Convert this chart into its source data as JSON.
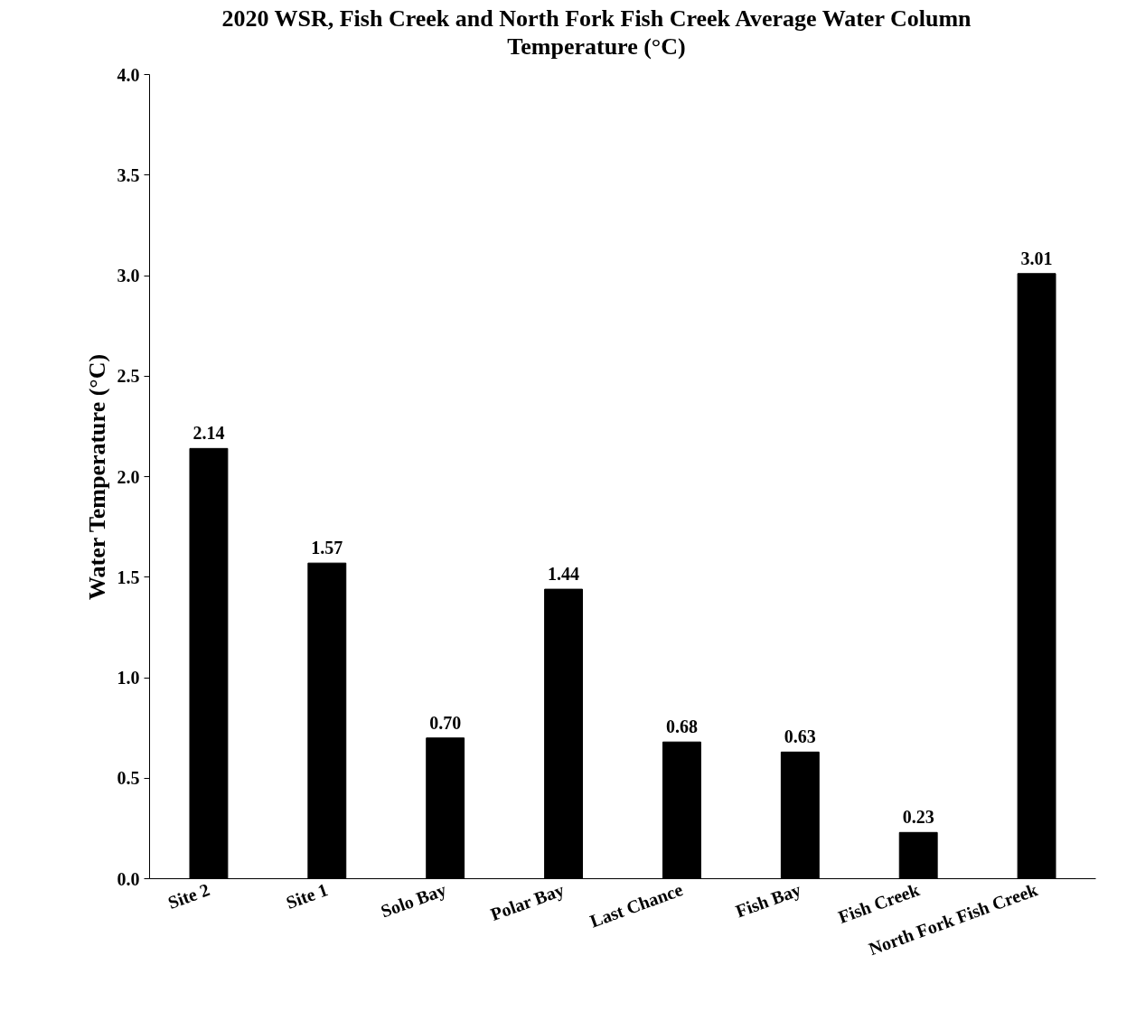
{
  "chart_data": {
    "type": "bar",
    "title": "2020 WSR, Fish Creek and North Fork Fish Creek Average Water Column Temperature (°C)",
    "ylabel": "Water Temperature (°C)",
    "categories": [
      "Site 2",
      "Site 1",
      "Solo Bay",
      "Polar Bay",
      "Last Chance",
      "Fish Bay",
      "Fish Creek",
      "North Fork Fish Creek"
    ],
    "values": [
      2.14,
      1.57,
      0.7,
      1.44,
      0.68,
      0.63,
      0.23,
      3.01
    ],
    "value_labels": [
      "2.14",
      "1.57",
      "0.70",
      "1.44",
      "0.68",
      "0.63",
      "0.23",
      "3.01"
    ],
    "color": "#000000",
    "ylim": [
      0,
      4
    ],
    "yticks": [
      {
        "value": 0,
        "label": "0.0"
      },
      {
        "value": 0.5,
        "label": "0.5"
      },
      {
        "value": 1,
        "label": "1.0"
      },
      {
        "value": 1.5,
        "label": "1.5"
      },
      {
        "value": 2,
        "label": "2.0"
      },
      {
        "value": 2.5,
        "label": "2.5"
      },
      {
        "value": 3,
        "label": "3.0"
      },
      {
        "value": 3.5,
        "label": "3.5"
      },
      {
        "value": 4,
        "label": "4.0"
      }
    ],
    "grid": false
  }
}
